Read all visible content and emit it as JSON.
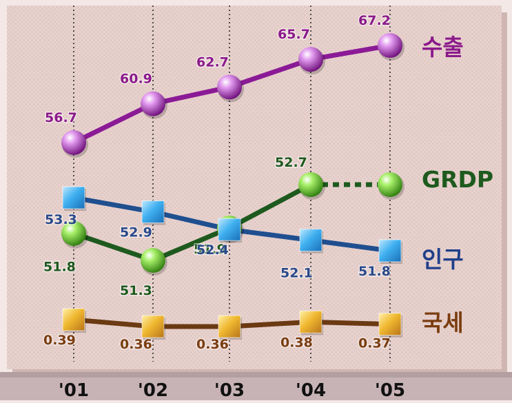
{
  "chart_data": {
    "type": "line",
    "categories": [
      "'01",
      "'02",
      "'03",
      "'04",
      "'05"
    ],
    "series": [
      {
        "name": "수출",
        "values": [
          56.7,
          60.9,
          62.7,
          65.7,
          67.2
        ],
        "labels": [
          "56.7",
          "60.9",
          "62.7",
          "65.7",
          "67.2"
        ],
        "color": "#8b1a8b",
        "line_color": "#8b1a96",
        "label_color": "#8b1a8b",
        "marker": "sphere",
        "marker_color": "#b040c0"
      },
      {
        "name": "GRDP",
        "values": [
          51.8,
          51.3,
          51.9,
          52.7,
          null
        ],
        "labels": [
          "51.8",
          "51.3",
          "51.9",
          "52.7",
          ""
        ],
        "color": "#1e5a1e",
        "line_color": "#1e5a1e",
        "label_color": "#1e5a1e",
        "marker": "sphere",
        "marker_color": "#5cc82c",
        "dashed_last_segment": true
      },
      {
        "name": "인구",
        "values": [
          53.3,
          52.9,
          52.4,
          52.1,
          51.8
        ],
        "labels": [
          "53.3",
          "52.9",
          "52.4",
          "52.1",
          "51.8"
        ],
        "color": "#1f3f8a",
        "line_color": "#1f4f8f",
        "label_color": "#2a4a8a",
        "marker": "square",
        "marker_color": "#3fb0f0"
      },
      {
        "name": "국세",
        "values": [
          0.39,
          0.36,
          0.36,
          0.38,
          0.37
        ],
        "labels": [
          "0.39",
          "0.36",
          "0.36",
          "0.38",
          "0.37"
        ],
        "color": "#7a3d10",
        "line_color": "#6b3a12",
        "label_color": "#7a3d10",
        "marker": "square",
        "marker_color": "#e8a828"
      }
    ],
    "grid": "vertical-dotted",
    "legend": "right",
    "title": "",
    "xlabel": "",
    "ylabel": ""
  },
  "colors": {
    "background": "#f3e8e6",
    "panel": "#e7d1cd",
    "shadow": "#b89590",
    "gridline": "#2a2a2a",
    "tick_text": "#111111"
  }
}
